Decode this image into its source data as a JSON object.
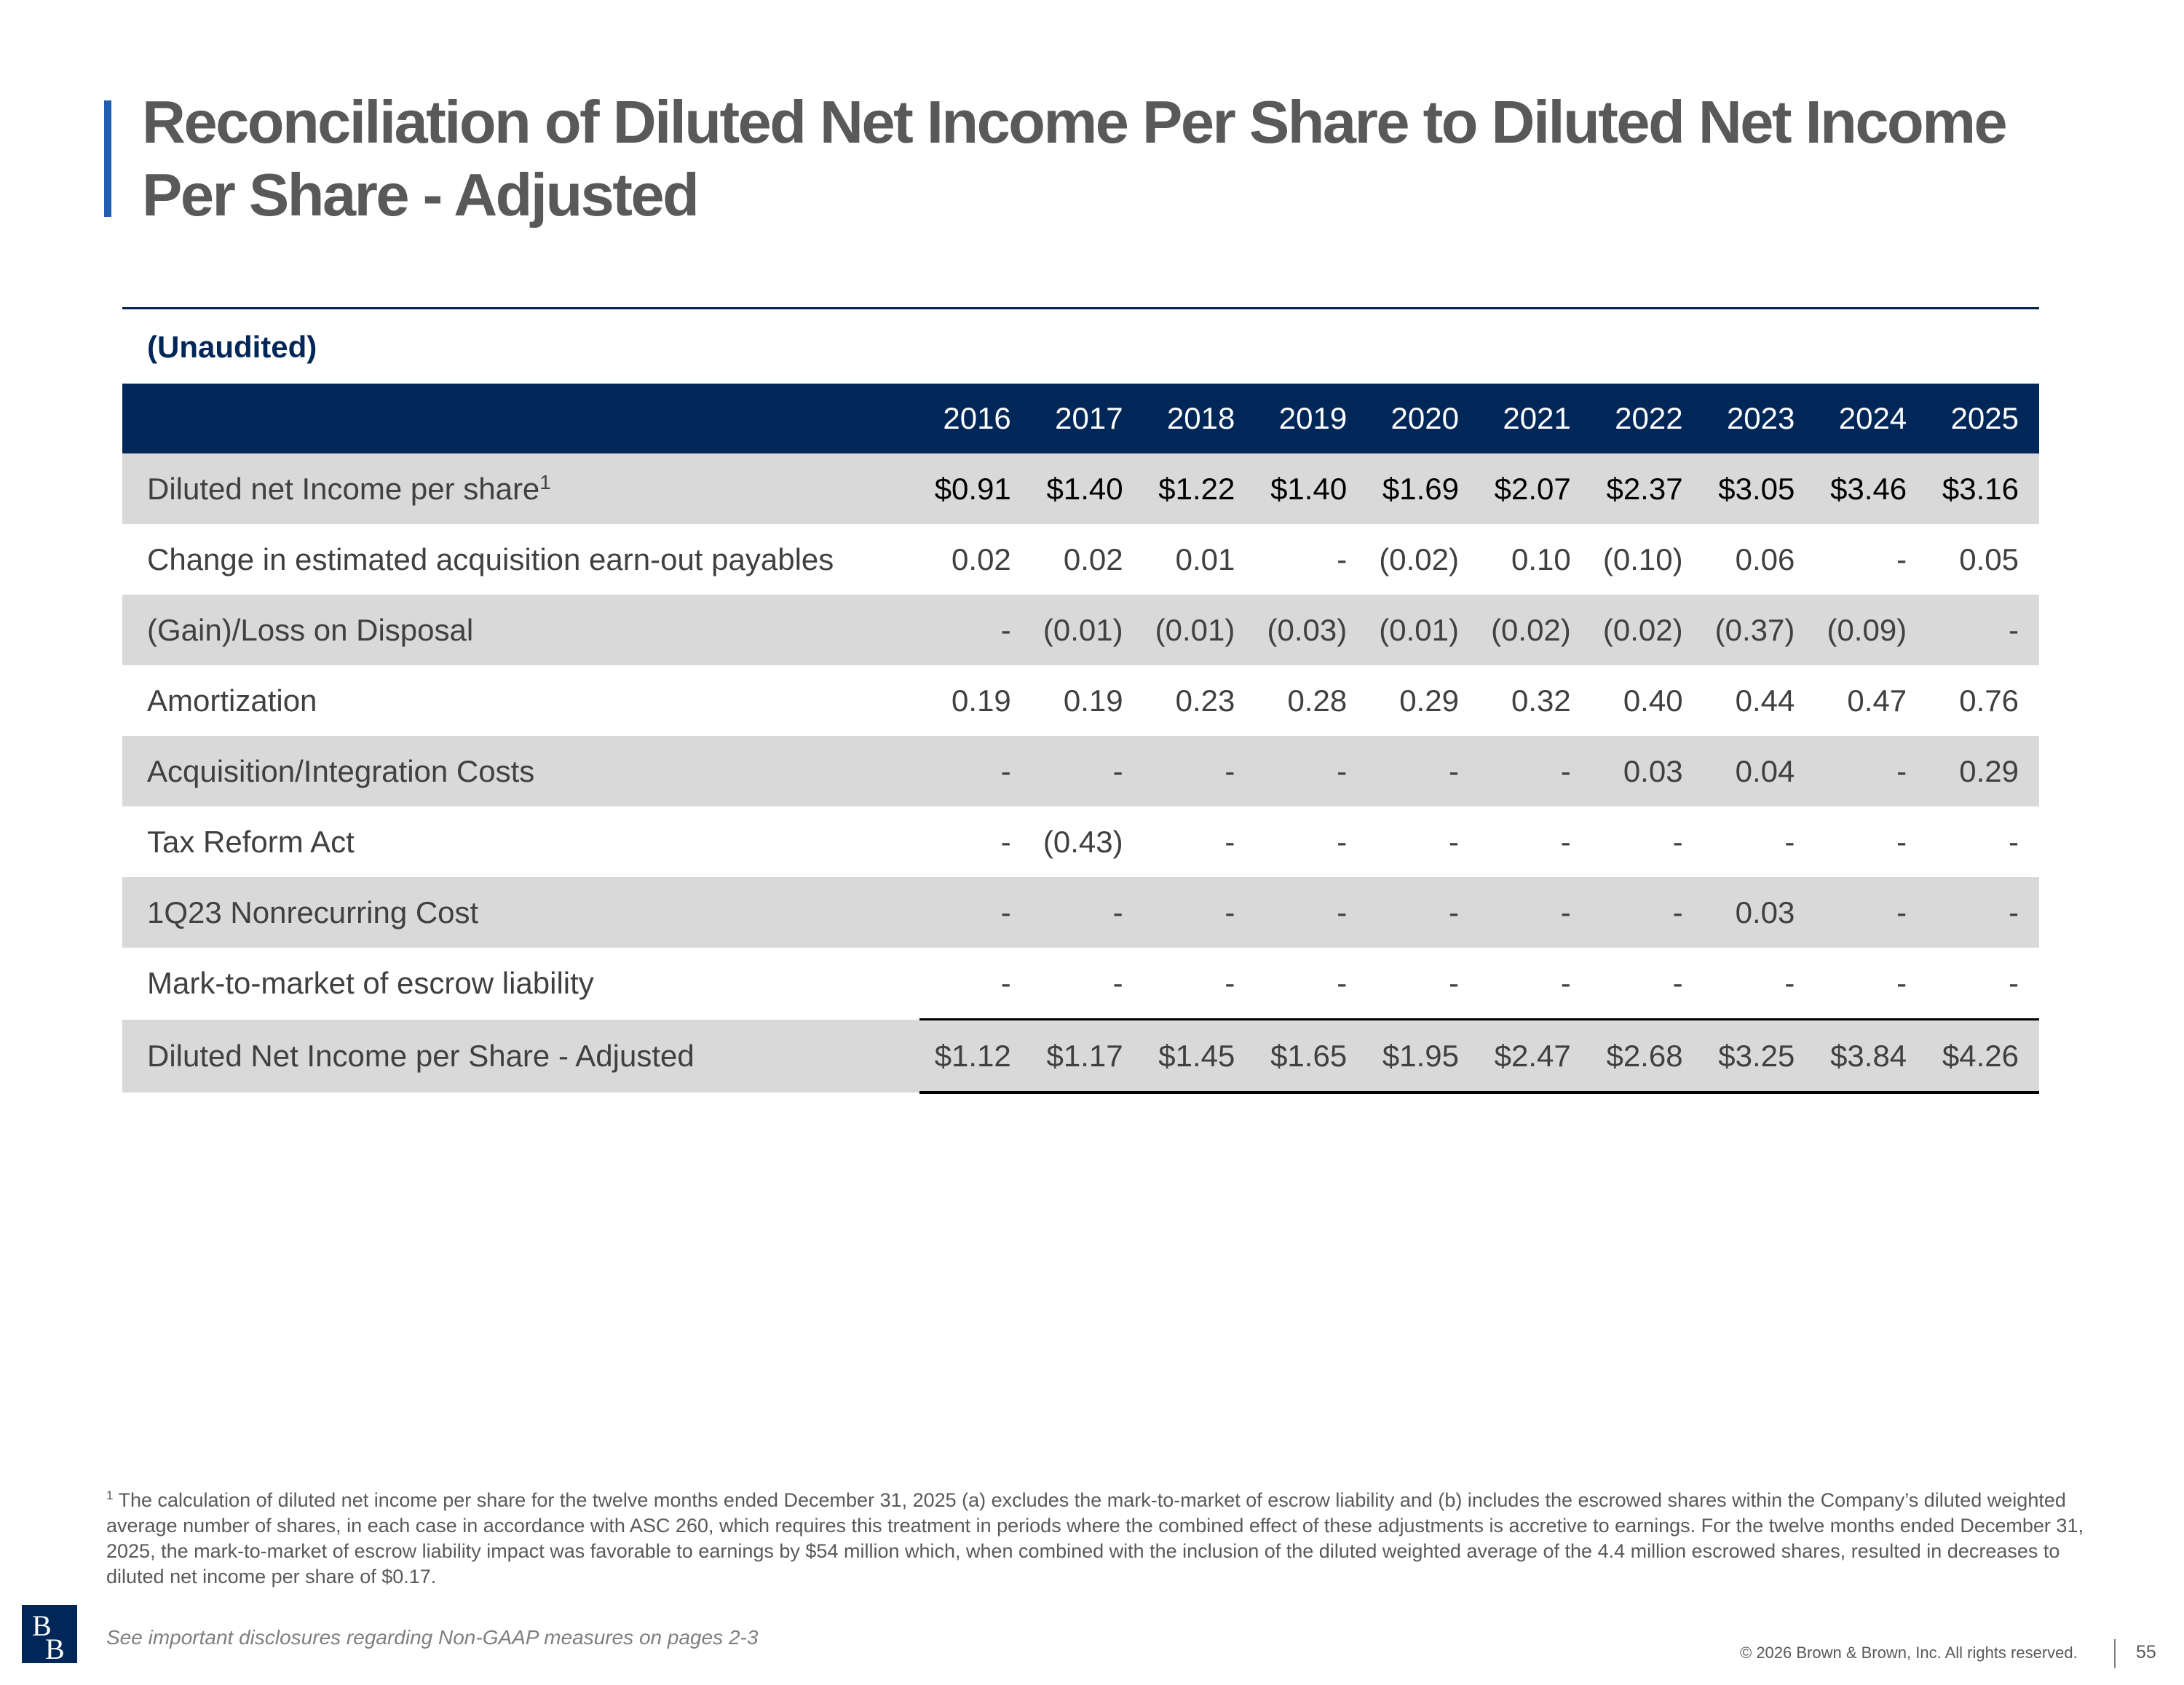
{
  "title": "Reconciliation of Diluted Net Income Per Share to Diluted Net Income Per Share - Adjusted",
  "subheading": "(Unaudited)",
  "table": {
    "years": [
      "2016",
      "2017",
      "2018",
      "2019",
      "2020",
      "2021",
      "2022",
      "2023",
      "2024",
      "2025"
    ],
    "rows": [
      {
        "label": "Diluted net Income per share",
        "sup": "1",
        "values": [
          "$0.91",
          "$1.40",
          "$1.22",
          "$1.40",
          "$1.69",
          "$2.07",
          "$2.37",
          "$3.05",
          "$3.46",
          "$3.16"
        ]
      },
      {
        "label": "Change in estimated acquisition earn-out payables",
        "values": [
          "0.02",
          "0.02",
          "0.01",
          "-",
          "(0.02)",
          "0.10",
          "(0.10)",
          "0.06",
          "-",
          "0.05"
        ]
      },
      {
        "label": "(Gain)/Loss on Disposal",
        "values": [
          "-",
          "(0.01)",
          "(0.01)",
          "(0.03)",
          "(0.01)",
          "(0.02)",
          "(0.02)",
          "(0.37)",
          "(0.09)",
          "-"
        ]
      },
      {
        "label": "Amortization",
        "values": [
          "0.19",
          "0.19",
          "0.23",
          "0.28",
          "0.29",
          "0.32",
          "0.40",
          "0.44",
          "0.47",
          "0.76"
        ]
      },
      {
        "label": "Acquisition/Integration Costs",
        "values": [
          "-",
          "-",
          "-",
          "-",
          "-",
          "-",
          "0.03",
          "0.04",
          "-",
          "0.29"
        ]
      },
      {
        "label": "Tax Reform Act",
        "values": [
          "-",
          "(0.43)",
          "-",
          "-",
          "-",
          "-",
          "-",
          "-",
          "-",
          "-"
        ]
      },
      {
        "label": "1Q23 Nonrecurring Cost",
        "values": [
          "-",
          "-",
          "-",
          "-",
          "-",
          "-",
          "-",
          "0.03",
          "-",
          "-"
        ]
      },
      {
        "label": "Mark-to-market of escrow liability",
        "values": [
          "-",
          "-",
          "-",
          "-",
          "-",
          "-",
          "-",
          "-",
          "-",
          "-"
        ]
      },
      {
        "label": "Diluted Net Income per Share - Adjusted",
        "values": [
          "$1.12",
          "$1.17",
          "$1.45",
          "$1.65",
          "$1.95",
          "$2.47",
          "$2.68",
          "$3.25",
          "$3.84",
          "$4.26"
        ]
      }
    ]
  },
  "footnote": {
    "marker": "1",
    "text": "The calculation of diluted net income per share for the twelve months ended December 31, 2025 (a) excludes the mark-to-market of escrow liability and (b) includes the escrowed shares within the Company’s diluted weighted average number of shares, in each case in accordance with ASC 260, which requires this treatment in periods where the combined effect of these adjustments is accretive to earnings. For the twelve months ended December 31, 2025, the mark-to-market of escrow liability impact was favorable to earnings by $54 million which, when combined with the inclusion of the diluted weighted average of the 4.4 million escrowed shares, resulted in decreases to diluted net income per share of $0.17."
  },
  "footer": {
    "disclosure": "See important disclosures regarding Non-GAAP measures on pages 2-3",
    "copyright": "© 2026 Brown & Brown, Inc. All rights reserved.",
    "page_number": "55",
    "logo_text": "BB"
  },
  "colors": {
    "navy": "#002758",
    "accent_blue": "#1f5fb0",
    "row_shade": "#d9d9d9",
    "title_gray": "#595959"
  }
}
